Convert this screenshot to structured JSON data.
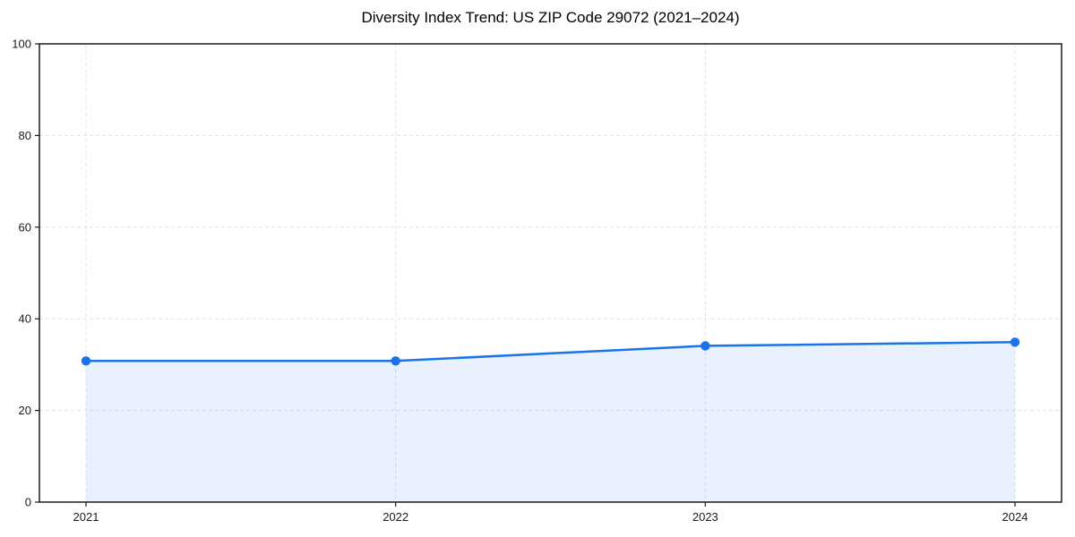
{
  "chart_data": {
    "type": "line",
    "title": "Diversity Index Trend: US ZIP Code 29072 (2021–2024)",
    "categories": [
      "2021",
      "2022",
      "2023",
      "2024"
    ],
    "series": [
      {
        "name": "Diversity Index",
        "values": [
          30.8,
          30.8,
          34.1,
          34.9
        ]
      }
    ],
    "xlabel": "",
    "ylabel": "",
    "ylim": [
      0,
      100
    ],
    "yticks": [
      0,
      20,
      40,
      60,
      80,
      100
    ],
    "grid": "dashed-both-axes",
    "legend": "none",
    "area_fill": true,
    "marker": "circle",
    "colors": {
      "line": "#1a73e8",
      "marker": "#1a73e8",
      "area_fill": "rgba(26,115,232,0.10)",
      "grid": "#e3e3e3",
      "axis": "#1a1a1a",
      "tick_text": "#1a1a1a",
      "title_text": "#000000",
      "background": "#ffffff"
    }
  }
}
